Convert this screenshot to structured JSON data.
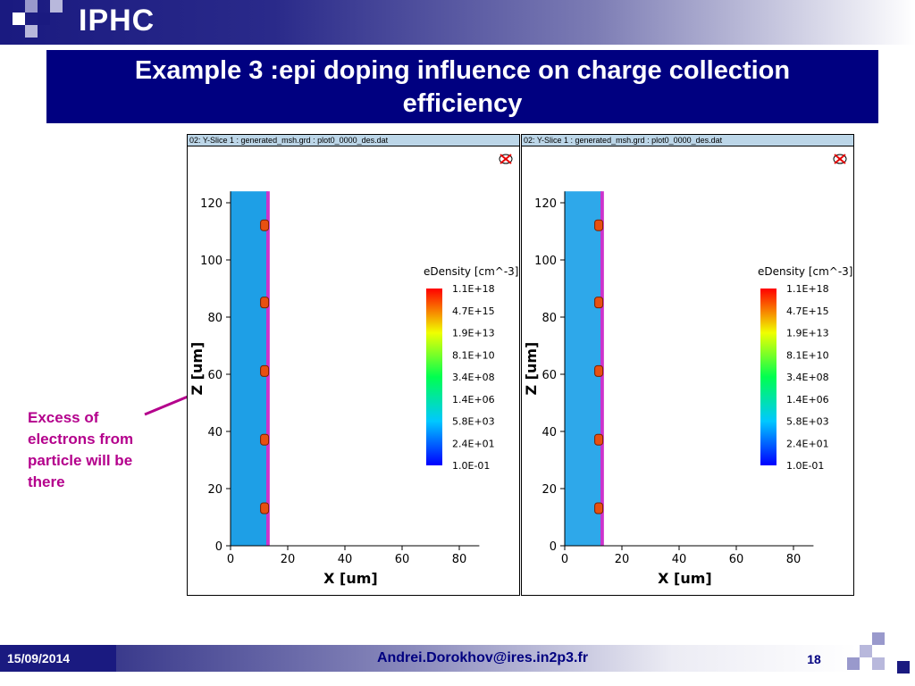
{
  "header": {
    "logo": "IPHC"
  },
  "slide": {
    "title_line1": "Example 3 :epi doping influence on charge collection",
    "title_line2": "efficiency",
    "annotation": [
      "Excess of",
      "electrons from",
      "particle will be",
      "there"
    ]
  },
  "panels": [
    {
      "header": "02: Y-Slice 1 : generated_msh.grd : plot0_0000_des.dat",
      "legend_title": "eDensity [cm^-3]",
      "legend_labels": [
        "1.1E+18",
        "4.7E+15",
        "1.9E+13",
        "8.1E+10",
        "3.4E+08",
        "1.4E+06",
        "5.8E+03",
        "2.4E+01",
        "1.0E-01"
      ],
      "xlabel": "X [um]",
      "ylabel": "Z [um]",
      "xticks": [
        "0",
        "20",
        "40",
        "60",
        "80"
      ],
      "yticks": [
        "0",
        "20",
        "40",
        "60",
        "80",
        "100",
        "120"
      ]
    },
    {
      "header": "02: Y-Slice 1 : generated_msh.grd : plot0_0000_des.dat",
      "legend_title": "eDensity [cm^-3]",
      "legend_labels": [
        "1.1E+18",
        "4.7E+15",
        "1.9E+13",
        "8.1E+10",
        "3.4E+08",
        "1.4E+06",
        "5.8E+03",
        "2.4E+01",
        "1.0E-01"
      ],
      "xlabel": "X [um]",
      "ylabel": "Z [um]",
      "xticks": [
        "0",
        "20",
        "40",
        "60",
        "80"
      ],
      "yticks": [
        "0",
        "20",
        "40",
        "60",
        "80",
        "100",
        "120"
      ]
    }
  ],
  "footer": {
    "date": "15/09/2014",
    "email": "Andrei.Dorokhov@ires.in2p3.fr",
    "page": "18"
  },
  "colors": {
    "title_bg": "#000080",
    "annotation": "#b4008c",
    "band_blue": "#1e9fe6",
    "junction": "#cc33cc"
  }
}
